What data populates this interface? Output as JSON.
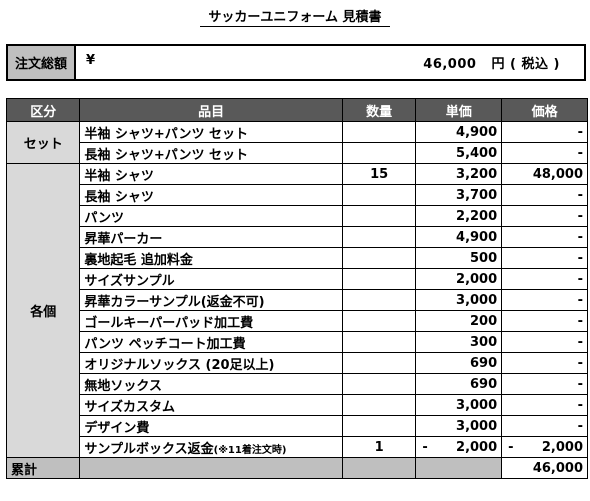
{
  "title": "サッカーユニフォーム 見積書",
  "summary": {
    "label": "注文総額",
    "currency_symbol": "¥",
    "amount": "46,000",
    "unit": "円 ( 税込 )"
  },
  "table": {
    "headers": [
      "区分",
      "品目",
      "数量",
      "単価",
      "価格"
    ],
    "groups": [
      {
        "category": "セット",
        "rows": [
          {
            "name": "半袖 シャツ+パンツ セット",
            "qty": "",
            "unit_price": "4,900",
            "price": "-"
          },
          {
            "name": "長袖 シャツ+パンツ セット",
            "qty": "",
            "unit_price": "5,400",
            "price": "-"
          }
        ]
      },
      {
        "category": "各個",
        "rows": [
          {
            "name": "半袖 シャツ",
            "qty": "15",
            "unit_price": "3,200",
            "price": "48,000"
          },
          {
            "name": "長袖 シャツ",
            "qty": "",
            "unit_price": "3,700",
            "price": "-"
          },
          {
            "name": "パンツ",
            "qty": "",
            "unit_price": "2,200",
            "price": "-"
          },
          {
            "name": "昇華パーカー",
            "qty": "",
            "unit_price": "4,900",
            "price": "-"
          },
          {
            "name": "裏地起毛 追加料金",
            "qty": "",
            "unit_price": "500",
            "price": "-"
          },
          {
            "name": "サイズサンプル",
            "qty": "",
            "unit_price": "2,000",
            "price": "-"
          },
          {
            "name": "昇華カラーサンプル(返金不可)",
            "qty": "",
            "unit_price": "3,000",
            "price": "-"
          },
          {
            "name": "ゴールキーパーパッド加工費",
            "qty": "",
            "unit_price": "200",
            "price": "-"
          },
          {
            "name": "パンツ ペッチコート加工費",
            "qty": "",
            "unit_price": "300",
            "price": "-"
          },
          {
            "name": "オリジナルソックス (20足以上)",
            "qty": "",
            "unit_price": "690",
            "price": "-"
          },
          {
            "name": "無地ソックス",
            "qty": "",
            "unit_price": "690",
            "price": "-"
          },
          {
            "name": "サイズカスタム",
            "qty": "",
            "unit_price": "3,000",
            "price": "-"
          },
          {
            "name": "デザイン費",
            "qty": "",
            "unit_price": "3,000",
            "price": "-"
          }
        ]
      }
    ],
    "refund_row": {
      "name": "サンプルボックス返金",
      "note": "(※11着注文時)",
      "qty": "1",
      "unit_price_sign": "-",
      "unit_price": "2,000",
      "price_sign": "-",
      "price": "2,000"
    },
    "total": {
      "label": "累計",
      "value": "46,000"
    }
  }
}
